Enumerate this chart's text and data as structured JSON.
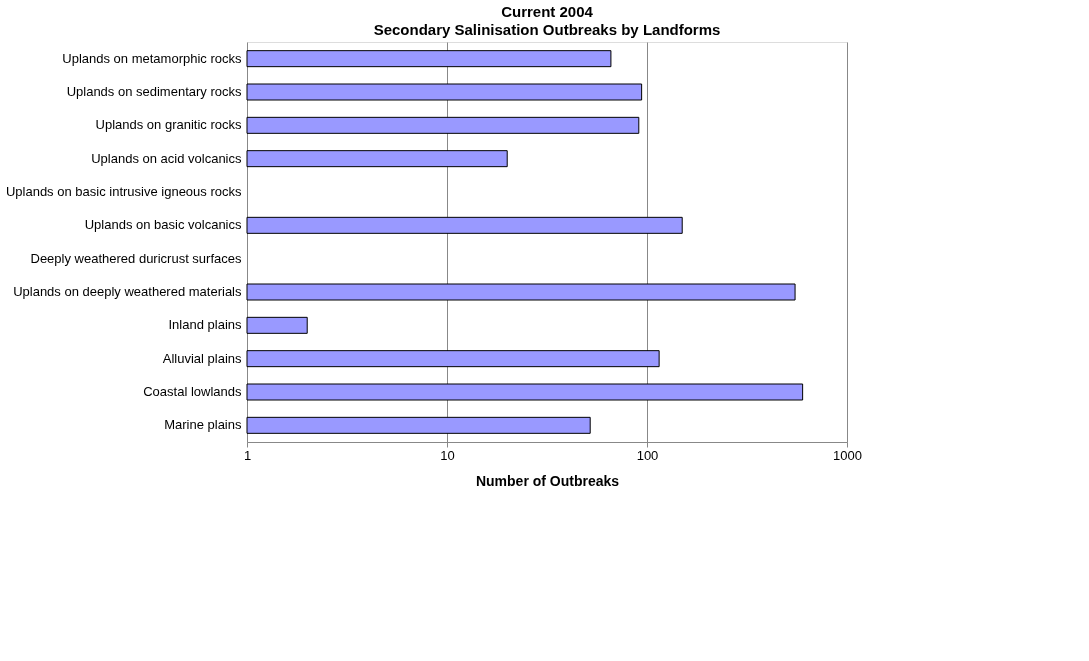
{
  "chart_data": {
    "type": "bar",
    "orientation": "horizontal",
    "title": "Current 2004",
    "subtitle": "Secondary Salinisation Outbreaks by Landforms",
    "xlabel": "Number of Outbreaks",
    "categories": [
      "Uplands on metamorphic rocks",
      "Uplands on sedimentary rocks",
      "Uplands on granitic rocks",
      "Uplands on acid volcanics",
      "Uplands on basic intrusive igneous rocks",
      "Uplands on basic volcanics",
      "Deeply weathered duricrust surfaces",
      "Uplands on deeply weathered materials",
      "Inland plains",
      "Alluvial plains",
      "Coastal lowlands",
      "Marine plains"
    ],
    "values": [
      66,
      94,
      91,
      20,
      null,
      150,
      null,
      550,
      2,
      115,
      600,
      52
    ],
    "color": "#9999ff",
    "log": "x",
    "xlim": [
      1,
      1000
    ],
    "xticks": [
      1,
      10,
      100,
      1000
    ],
    "grid": "x"
  }
}
